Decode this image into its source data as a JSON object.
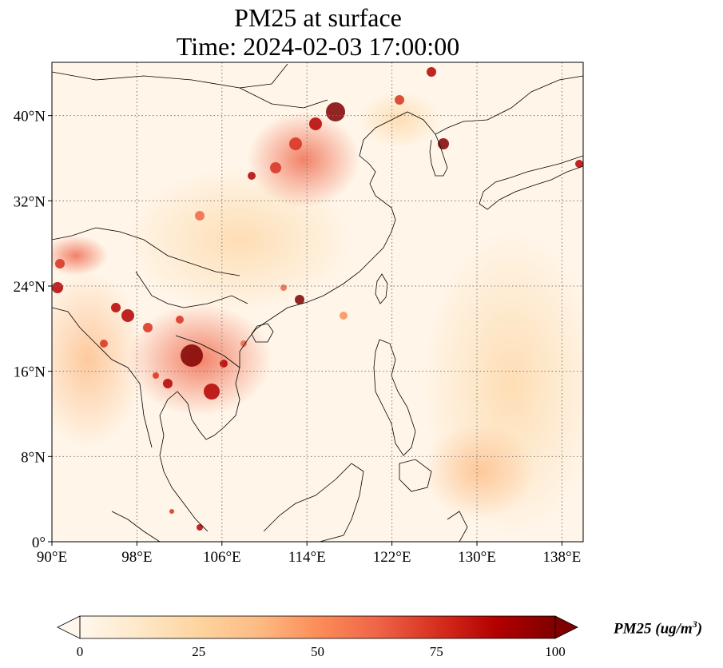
{
  "title": {
    "line1": "PM25 at surface",
    "line2": "Time: 2024-02-03 17:00:00"
  },
  "map": {
    "lon_range": [
      90,
      140
    ],
    "lat_range": [
      0,
      45
    ],
    "lon_ticks": [
      "90°E",
      "98°E",
      "106°E",
      "114°E",
      "122°E",
      "130°E",
      "138°E"
    ],
    "lat_ticks": [
      "0°",
      "8°N",
      "16°N",
      "24°N",
      "32°N",
      "40°N"
    ],
    "gridlines": true,
    "colormap": "OrRd",
    "background_color": "#fff5e8"
  },
  "colorbar": {
    "ticks": [
      "0",
      "25",
      "50",
      "75",
      "100"
    ],
    "range": [
      0,
      100
    ],
    "extend": "both",
    "label_main": "PM25 (ug/m",
    "label_sup": "3",
    "label_close": ")",
    "colors": [
      "#fff7ec",
      "#fee8c8",
      "#fdd49e",
      "#fdbb84",
      "#fc8d59",
      "#ef6548",
      "#d7301f",
      "#b30000",
      "#7f0000"
    ]
  }
}
